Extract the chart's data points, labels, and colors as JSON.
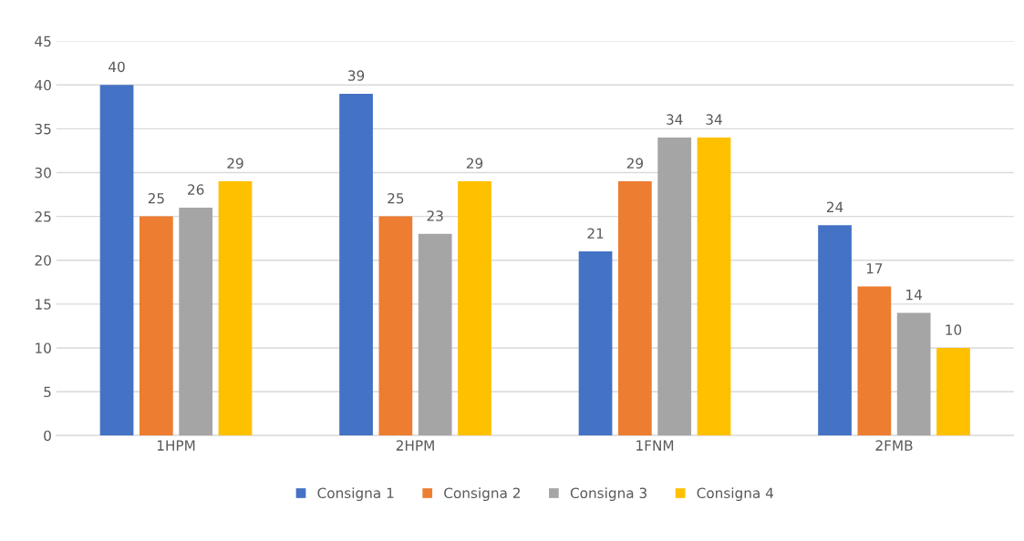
{
  "chart_data": {
    "type": "bar",
    "categories": [
      "1HPM",
      "2HPM",
      "1FNM",
      "2FMB"
    ],
    "series": [
      {
        "name": "Consigna 1",
        "color": "#4472c4",
        "values": [
          40,
          39,
          21,
          24
        ]
      },
      {
        "name": "Consigna 2",
        "color": "#ed7d31",
        "values": [
          25,
          25,
          29,
          17
        ]
      },
      {
        "name": "Consigna 3",
        "color": "#a5a5a5",
        "values": [
          26,
          23,
          34,
          14
        ]
      },
      {
        "name": "Consigna 4",
        "color": "#ffc000",
        "values": [
          29,
          29,
          34,
          10
        ]
      }
    ],
    "ylim": [
      0,
      45
    ],
    "yticks": [
      0,
      5,
      10,
      15,
      20,
      25,
      30,
      35,
      40,
      45
    ],
    "grid": "y",
    "legend": "bottom",
    "data_labels": true
  }
}
